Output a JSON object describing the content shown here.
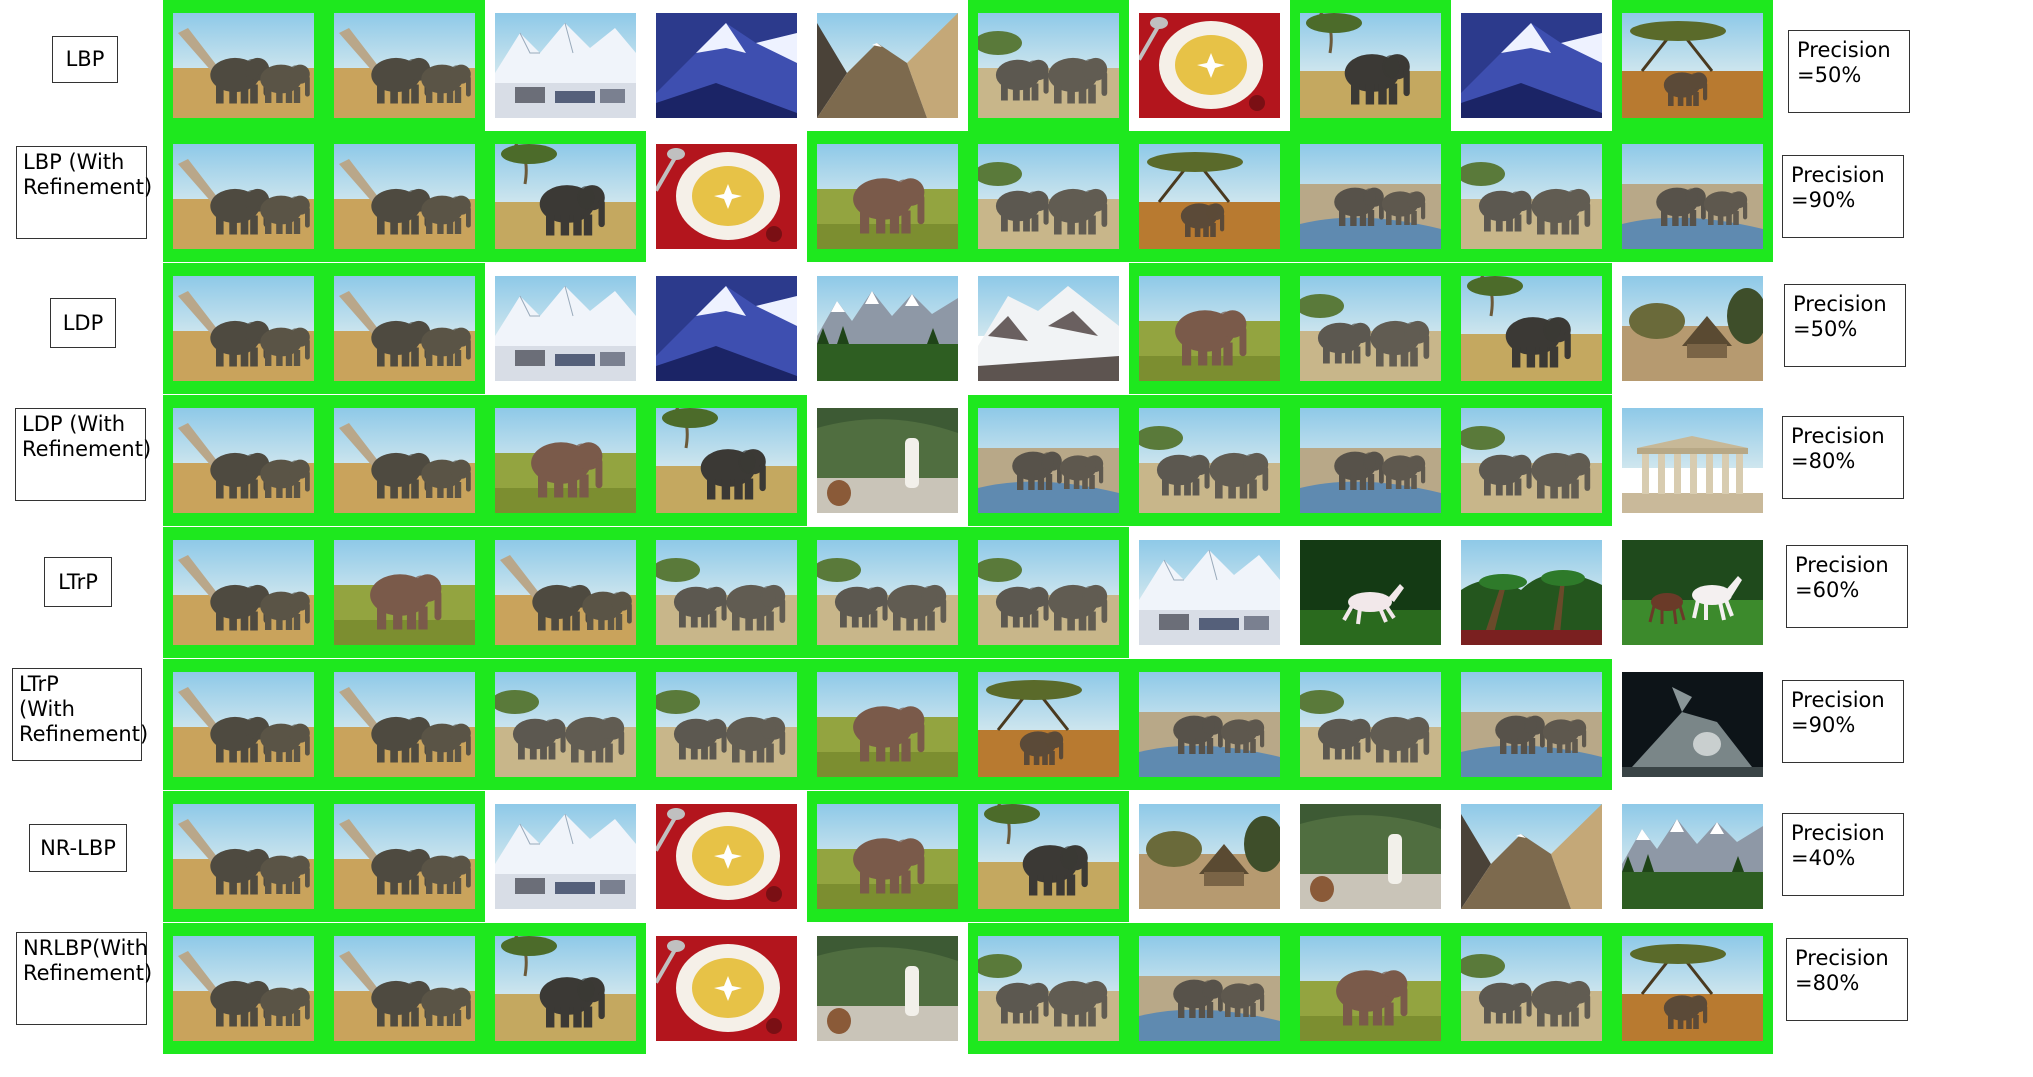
{
  "colors": {
    "relevant_highlight": "#1ee81e",
    "background": "#ffffff",
    "box_border": "#333333"
  },
  "image_kinds": {
    "E1": "elephant-at-dry-tree",
    "E2": "elephant-alone",
    "E3": "elephant-savanna-front",
    "E4": "elephant-herd",
    "E5": "elephant-water",
    "E6": "elephant-acacia-sunset",
    "M1": "mountain-snow-town",
    "M2": "mountain-blue",
    "M3": "mountain-gorge",
    "M4": "mountain-forest",
    "M5": "mountain-snowfield",
    "P": "plate-red",
    "H": "huts",
    "S": "stone-statue",
    "T": "greek-temple",
    "W": "white-horse",
    "W2": "horses-pair",
    "PL": "palms",
    "D": "dinosaur"
  },
  "rows": [
    {
      "label": "LBP",
      "precision_label": "Precision",
      "precision_value": "=50%",
      "results": [
        {
          "kind": "E1",
          "relevant": true
        },
        {
          "kind": "E1",
          "relevant": true
        },
        {
          "kind": "M1",
          "relevant": false
        },
        {
          "kind": "M2",
          "relevant": false
        },
        {
          "kind": "M3",
          "relevant": false
        },
        {
          "kind": "E4",
          "relevant": true
        },
        {
          "kind": "P",
          "relevant": false
        },
        {
          "kind": "E2",
          "relevant": true
        },
        {
          "kind": "M2",
          "relevant": false
        },
        {
          "kind": "E6",
          "relevant": true
        }
      ]
    },
    {
      "label": "LBP (With\nRefinement)",
      "precision_label": "Precision",
      "precision_value": "=90%",
      "results": [
        {
          "kind": "E1",
          "relevant": true
        },
        {
          "kind": "E1",
          "relevant": true
        },
        {
          "kind": "E2",
          "relevant": true
        },
        {
          "kind": "P",
          "relevant": false
        },
        {
          "kind": "E3",
          "relevant": true
        },
        {
          "kind": "E4",
          "relevant": true
        },
        {
          "kind": "E6",
          "relevant": true
        },
        {
          "kind": "E5",
          "relevant": true
        },
        {
          "kind": "E4",
          "relevant": true
        },
        {
          "kind": "E5",
          "relevant": true
        }
      ]
    },
    {
      "label": "LDP",
      "precision_label": "Precision",
      "precision_value": "=50%",
      "results": [
        {
          "kind": "E1",
          "relevant": true
        },
        {
          "kind": "E1",
          "relevant": true
        },
        {
          "kind": "M1",
          "relevant": false
        },
        {
          "kind": "M2",
          "relevant": false
        },
        {
          "kind": "M4",
          "relevant": false
        },
        {
          "kind": "M5",
          "relevant": false
        },
        {
          "kind": "E3",
          "relevant": true
        },
        {
          "kind": "E4",
          "relevant": true
        },
        {
          "kind": "E2",
          "relevant": true
        },
        {
          "kind": "H",
          "relevant": false
        }
      ]
    },
    {
      "label": "LDP (With\nRefinement)",
      "precision_label": "Precision",
      "precision_value": "=80%",
      "results": [
        {
          "kind": "E1",
          "relevant": true
        },
        {
          "kind": "E1",
          "relevant": true
        },
        {
          "kind": "E3",
          "relevant": true
        },
        {
          "kind": "E2",
          "relevant": true
        },
        {
          "kind": "S",
          "relevant": false
        },
        {
          "kind": "E5",
          "relevant": true
        },
        {
          "kind": "E4",
          "relevant": true
        },
        {
          "kind": "E5",
          "relevant": true
        },
        {
          "kind": "E4",
          "relevant": true
        },
        {
          "kind": "T",
          "relevant": false
        }
      ]
    },
    {
      "label": "LTrP",
      "precision_label": "Precision",
      "precision_value": "=60%",
      "results": [
        {
          "kind": "E1",
          "relevant": true
        },
        {
          "kind": "E3",
          "relevant": true
        },
        {
          "kind": "E1",
          "relevant": true
        },
        {
          "kind": "E4",
          "relevant": true
        },
        {
          "kind": "E4",
          "relevant": true
        },
        {
          "kind": "E4",
          "relevant": true
        },
        {
          "kind": "M1",
          "relevant": false
        },
        {
          "kind": "W",
          "relevant": false
        },
        {
          "kind": "PL",
          "relevant": false
        },
        {
          "kind": "W2",
          "relevant": false
        }
      ]
    },
    {
      "label": "LTrP\n(With\nRefinement)",
      "precision_label": "Precision",
      "precision_value": "=90%",
      "results": [
        {
          "kind": "E1",
          "relevant": true
        },
        {
          "kind": "E1",
          "relevant": true
        },
        {
          "kind": "E4",
          "relevant": true
        },
        {
          "kind": "E4",
          "relevant": true
        },
        {
          "kind": "E3",
          "relevant": true
        },
        {
          "kind": "E6",
          "relevant": true
        },
        {
          "kind": "E5",
          "relevant": true
        },
        {
          "kind": "E4",
          "relevant": true
        },
        {
          "kind": "E5",
          "relevant": true
        },
        {
          "kind": "D",
          "relevant": false
        }
      ]
    },
    {
      "label": "NR-LBP",
      "precision_label": "Precision",
      "precision_value": "=40%",
      "results": [
        {
          "kind": "E1",
          "relevant": true
        },
        {
          "kind": "E1",
          "relevant": true
        },
        {
          "kind": "M1",
          "relevant": false
        },
        {
          "kind": "P",
          "relevant": false
        },
        {
          "kind": "E3",
          "relevant": true
        },
        {
          "kind": "E2",
          "relevant": true
        },
        {
          "kind": "H",
          "relevant": false
        },
        {
          "kind": "S",
          "relevant": false
        },
        {
          "kind": "M3",
          "relevant": false
        },
        {
          "kind": "M4",
          "relevant": false
        }
      ]
    },
    {
      "label": "NRLBP(With\nRefinement)",
      "precision_label": "Precision",
      "precision_value": "=80%",
      "results": [
        {
          "kind": "E1",
          "relevant": true
        },
        {
          "kind": "E1",
          "relevant": true
        },
        {
          "kind": "E2",
          "relevant": true
        },
        {
          "kind": "P",
          "relevant": false
        },
        {
          "kind": "S",
          "relevant": false
        },
        {
          "kind": "E4",
          "relevant": true
        },
        {
          "kind": "E5",
          "relevant": true
        },
        {
          "kind": "E3",
          "relevant": true
        },
        {
          "kind": "E4",
          "relevant": true
        },
        {
          "kind": "E6",
          "relevant": true
        }
      ]
    }
  ]
}
